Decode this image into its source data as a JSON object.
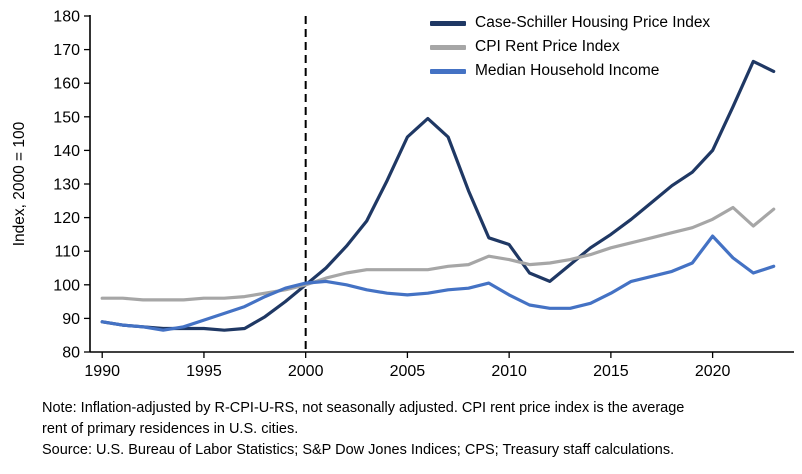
{
  "chart_data": {
    "type": "line",
    "title": "",
    "xlabel": "",
    "ylabel": "Index, 2000 = 100",
    "xlim": [
      1989.4,
      2024.0
    ],
    "ylim": [
      80,
      180
    ],
    "yticks": [
      80,
      90,
      100,
      110,
      120,
      130,
      140,
      150,
      160,
      170,
      180
    ],
    "xticks": [
      1990,
      1995,
      2000,
      2005,
      2010,
      2015,
      2020
    ],
    "grid": false,
    "legend_position": "top-right",
    "reference_line": {
      "x": 2000,
      "style": "dashed",
      "color": "#000000"
    },
    "x": [
      1990,
      1991,
      1992,
      1993,
      1994,
      1995,
      1996,
      1997,
      1998,
      1999,
      2000,
      2001,
      2002,
      2003,
      2004,
      2005,
      2006,
      2007,
      2008,
      2009,
      2010,
      2011,
      2012,
      2013,
      2014,
      2015,
      2016,
      2017,
      2018,
      2019,
      2020,
      2021,
      2022,
      2023
    ],
    "series": [
      {
        "name": "Case-Schiller Housing Price Index",
        "color": "#1f3864",
        "values": [
          89,
          88,
          87.5,
          87,
          87,
          87,
          86.5,
          87,
          90.5,
          95,
          100,
          105,
          111.5,
          119,
          131,
          144,
          149.5,
          144,
          128,
          114,
          112,
          103.5,
          101,
          106,
          111,
          115,
          119.5,
          124.5,
          129.5,
          133.5,
          140,
          153,
          166.5,
          163.5
        ]
      },
      {
        "name": "CPI Rent Price Index",
        "color": "#a6a6a6",
        "values": [
          96,
          96,
          95.5,
          95.5,
          95.5,
          96,
          96,
          96.5,
          97.5,
          98.5,
          100,
          102,
          103.5,
          104.5,
          104.5,
          104.5,
          104.5,
          105.5,
          106,
          108.5,
          107.5,
          106,
          106.5,
          107.5,
          109,
          111,
          112.5,
          114,
          115.5,
          117,
          119.5,
          123,
          117.5,
          122.5
        ]
      },
      {
        "name": "Median Household Income",
        "color": "#4472c4",
        "values": [
          89,
          88,
          87.5,
          86.5,
          87.5,
          89.5,
          91.5,
          93.5,
          96.5,
          99,
          100.5,
          101,
          100,
          98.5,
          97.5,
          97,
          97.5,
          98.5,
          99,
          100.5,
          97,
          94,
          93,
          93,
          94.5,
          97.5,
          101,
          102.5,
          104,
          106.5,
          114.5,
          108,
          103.5,
          105.5
        ]
      }
    ]
  },
  "notes": {
    "note_line1": "Note: Inflation-adjusted by R-CPI-U-RS, not seasonally adjusted. CPI rent price index is the average",
    "note_line2": "rent of primary residences in U.S. cities.",
    "source": "Source: U.S. Bureau of Labor Statistics; S&P Dow Jones Indices; CPS; Treasury staff calculations."
  }
}
